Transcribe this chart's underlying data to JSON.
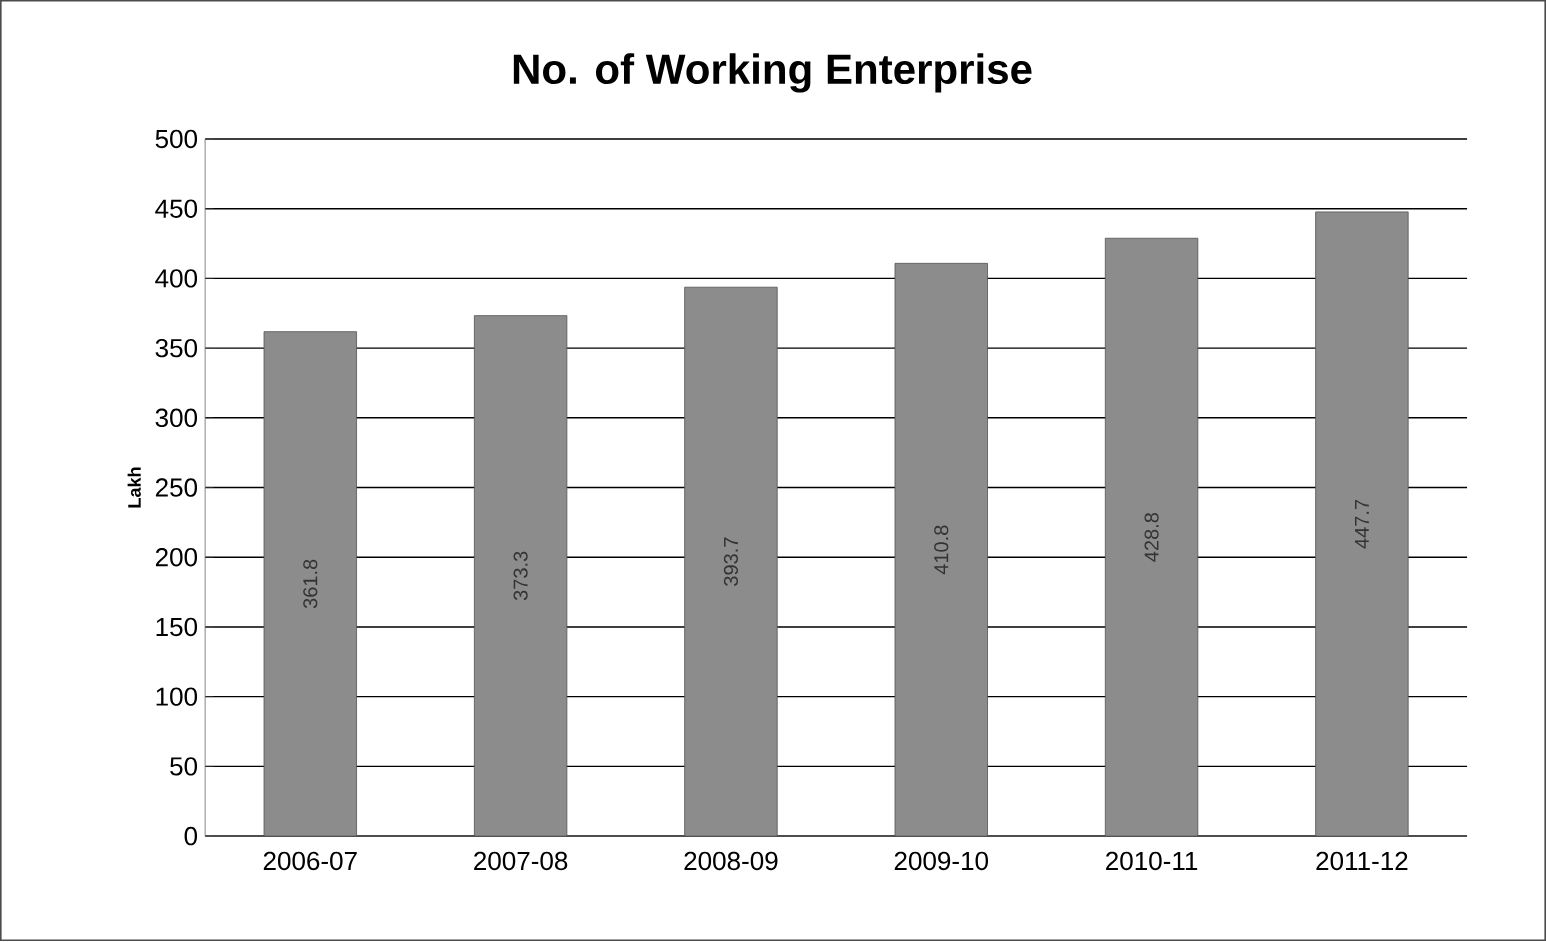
{
  "chart_data": {
    "type": "bar",
    "title": "No. of Working Enterprise",
    "ylabel": "Lakh",
    "categories": [
      "2006-07",
      "2007-08",
      "2008-09",
      "2009-10",
      "2010-11",
      "2011-12"
    ],
    "values": [
      361.8,
      373.3,
      393.7,
      410.8,
      428.8,
      447.7
    ],
    "color": "#8c8c8c",
    "ylim": [
      0,
      500
    ],
    "yticks": [
      0,
      50,
      100,
      150,
      200,
      250,
      300,
      350,
      400,
      450,
      500
    ],
    "grid": "y",
    "data_labels": true
  }
}
